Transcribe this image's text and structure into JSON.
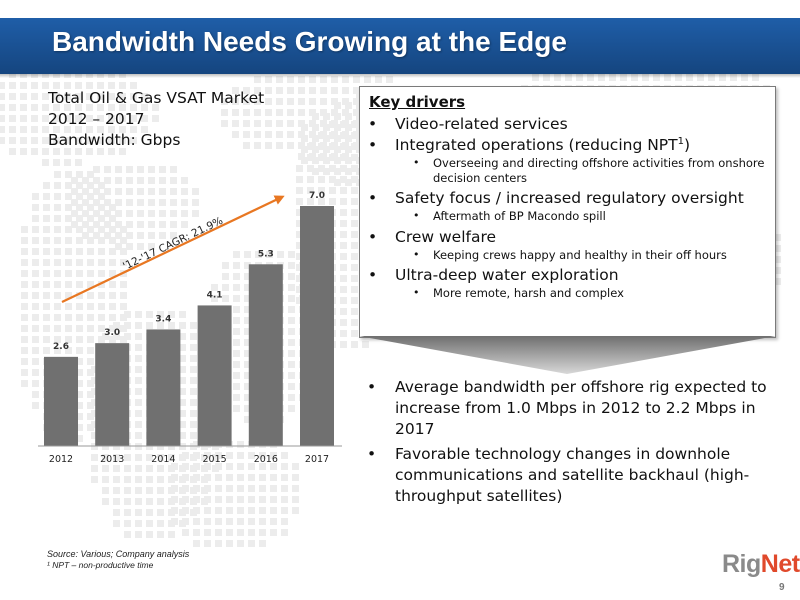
{
  "slide": {
    "title": "Bandwidth Needs Growing at the Edge",
    "page_number": "9",
    "logo": {
      "part1": "Rig",
      "part2": "Net",
      "colors": {
        "rig": "#8a8a8a",
        "net": "#e0492b"
      }
    },
    "accent_color": "#1d5aa3",
    "source_note": "Source: Various; Company analysis",
    "footnote": "¹ NPT – non-productive time"
  },
  "chart_heading": {
    "line1": "Total Oil & Gas VSAT Market",
    "line2": "2012 – 2017",
    "line3": "Bandwidth: Gbps"
  },
  "chart_data": {
    "type": "bar",
    "categories": [
      "2012",
      "2013",
      "2014",
      "2015",
      "2016",
      "2017"
    ],
    "values": [
      2.6,
      3.0,
      3.4,
      4.1,
      5.3,
      7.0
    ],
    "value_labels": [
      "2.6",
      "3.0",
      "3.4",
      "4.1",
      "5.3",
      "7.0"
    ],
    "ylim": [
      0,
      8
    ],
    "bar_color": "#707070",
    "annotation": {
      "text": "'12-'17 CAGR: 21.9%",
      "arrow_color": "#e87722"
    },
    "title": "",
    "xlabel": "",
    "ylabel": "",
    "grid": false,
    "legend": "none"
  },
  "key_drivers": {
    "heading": "Key drivers",
    "items": [
      {
        "text": "Video-related services",
        "sub": []
      },
      {
        "text": "Integrated operations (reducing NPT",
        "sup": "1",
        "text_after": ")",
        "sub": [
          "Overseeing and directing offshore activities from onshore decision centers"
        ]
      },
      {
        "text": "Safety focus / increased regulatory oversight",
        "sub": [
          "Aftermath of BP Macondo spill"
        ]
      },
      {
        "text": "Crew welfare",
        "sub": [
          "Keeping crews happy and healthy in their off hours"
        ]
      },
      {
        "text": "Ultra-deep water exploration",
        "sub": [
          "More remote, harsh and complex"
        ]
      }
    ]
  },
  "outcomes": [
    "Average bandwidth per offshore rig expected to increase from 1.0 Mbps in 2012 to 2.2 Mbps in 2017",
    "Favorable technology changes in downhole communications and satellite backhaul (high-throughput satellites)"
  ]
}
